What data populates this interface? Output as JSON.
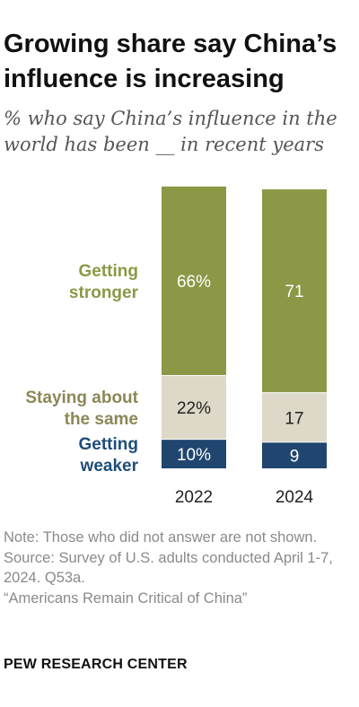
{
  "title": "Growing share say China’s influence is increasing",
  "subtitle": "% who say China’s influence in the world has been __ in recent years",
  "chart_data": {
    "type": "bar",
    "stacked": true,
    "orientation": "vertical",
    "categories": [
      "2022",
      "2024"
    ],
    "series": [
      {
        "name": "Getting weaker",
        "label_lines": [
          "Getting",
          "weaker"
        ],
        "values": [
          10,
          9
        ],
        "labels": [
          "10%",
          "9"
        ],
        "color": "#20466f",
        "label_color": "#1f4e79",
        "value_text_color": "#ffffff"
      },
      {
        "name": "Staying about the same",
        "label_lines": [
          "Staying about",
          "the same"
        ],
        "values": [
          22,
          17
        ],
        "labels": [
          "22%",
          "17"
        ],
        "color": "#ddd8c7",
        "label_color": "#8b8757",
        "value_text_color": "#222222"
      },
      {
        "name": "Getting stronger",
        "label_lines": [
          "Getting",
          "stronger"
        ],
        "values": [
          66,
          71
        ],
        "labels": [
          "66%",
          "71"
        ],
        "color": "#8c9846",
        "label_color": "#8c9846",
        "value_text_color": "#ffffff"
      }
    ],
    "ylim": [
      0,
      100
    ],
    "grid": false,
    "legend": "left of bars"
  },
  "note": {
    "note_text": "Note: Those who did not answer are not shown.",
    "source_text": "Source: Survey of U.S. adults conducted April 1-7, 2024. Q53a.",
    "report_text": "“Americans Remain Critical of China”"
  },
  "brand": "PEW RESEARCH CENTER"
}
